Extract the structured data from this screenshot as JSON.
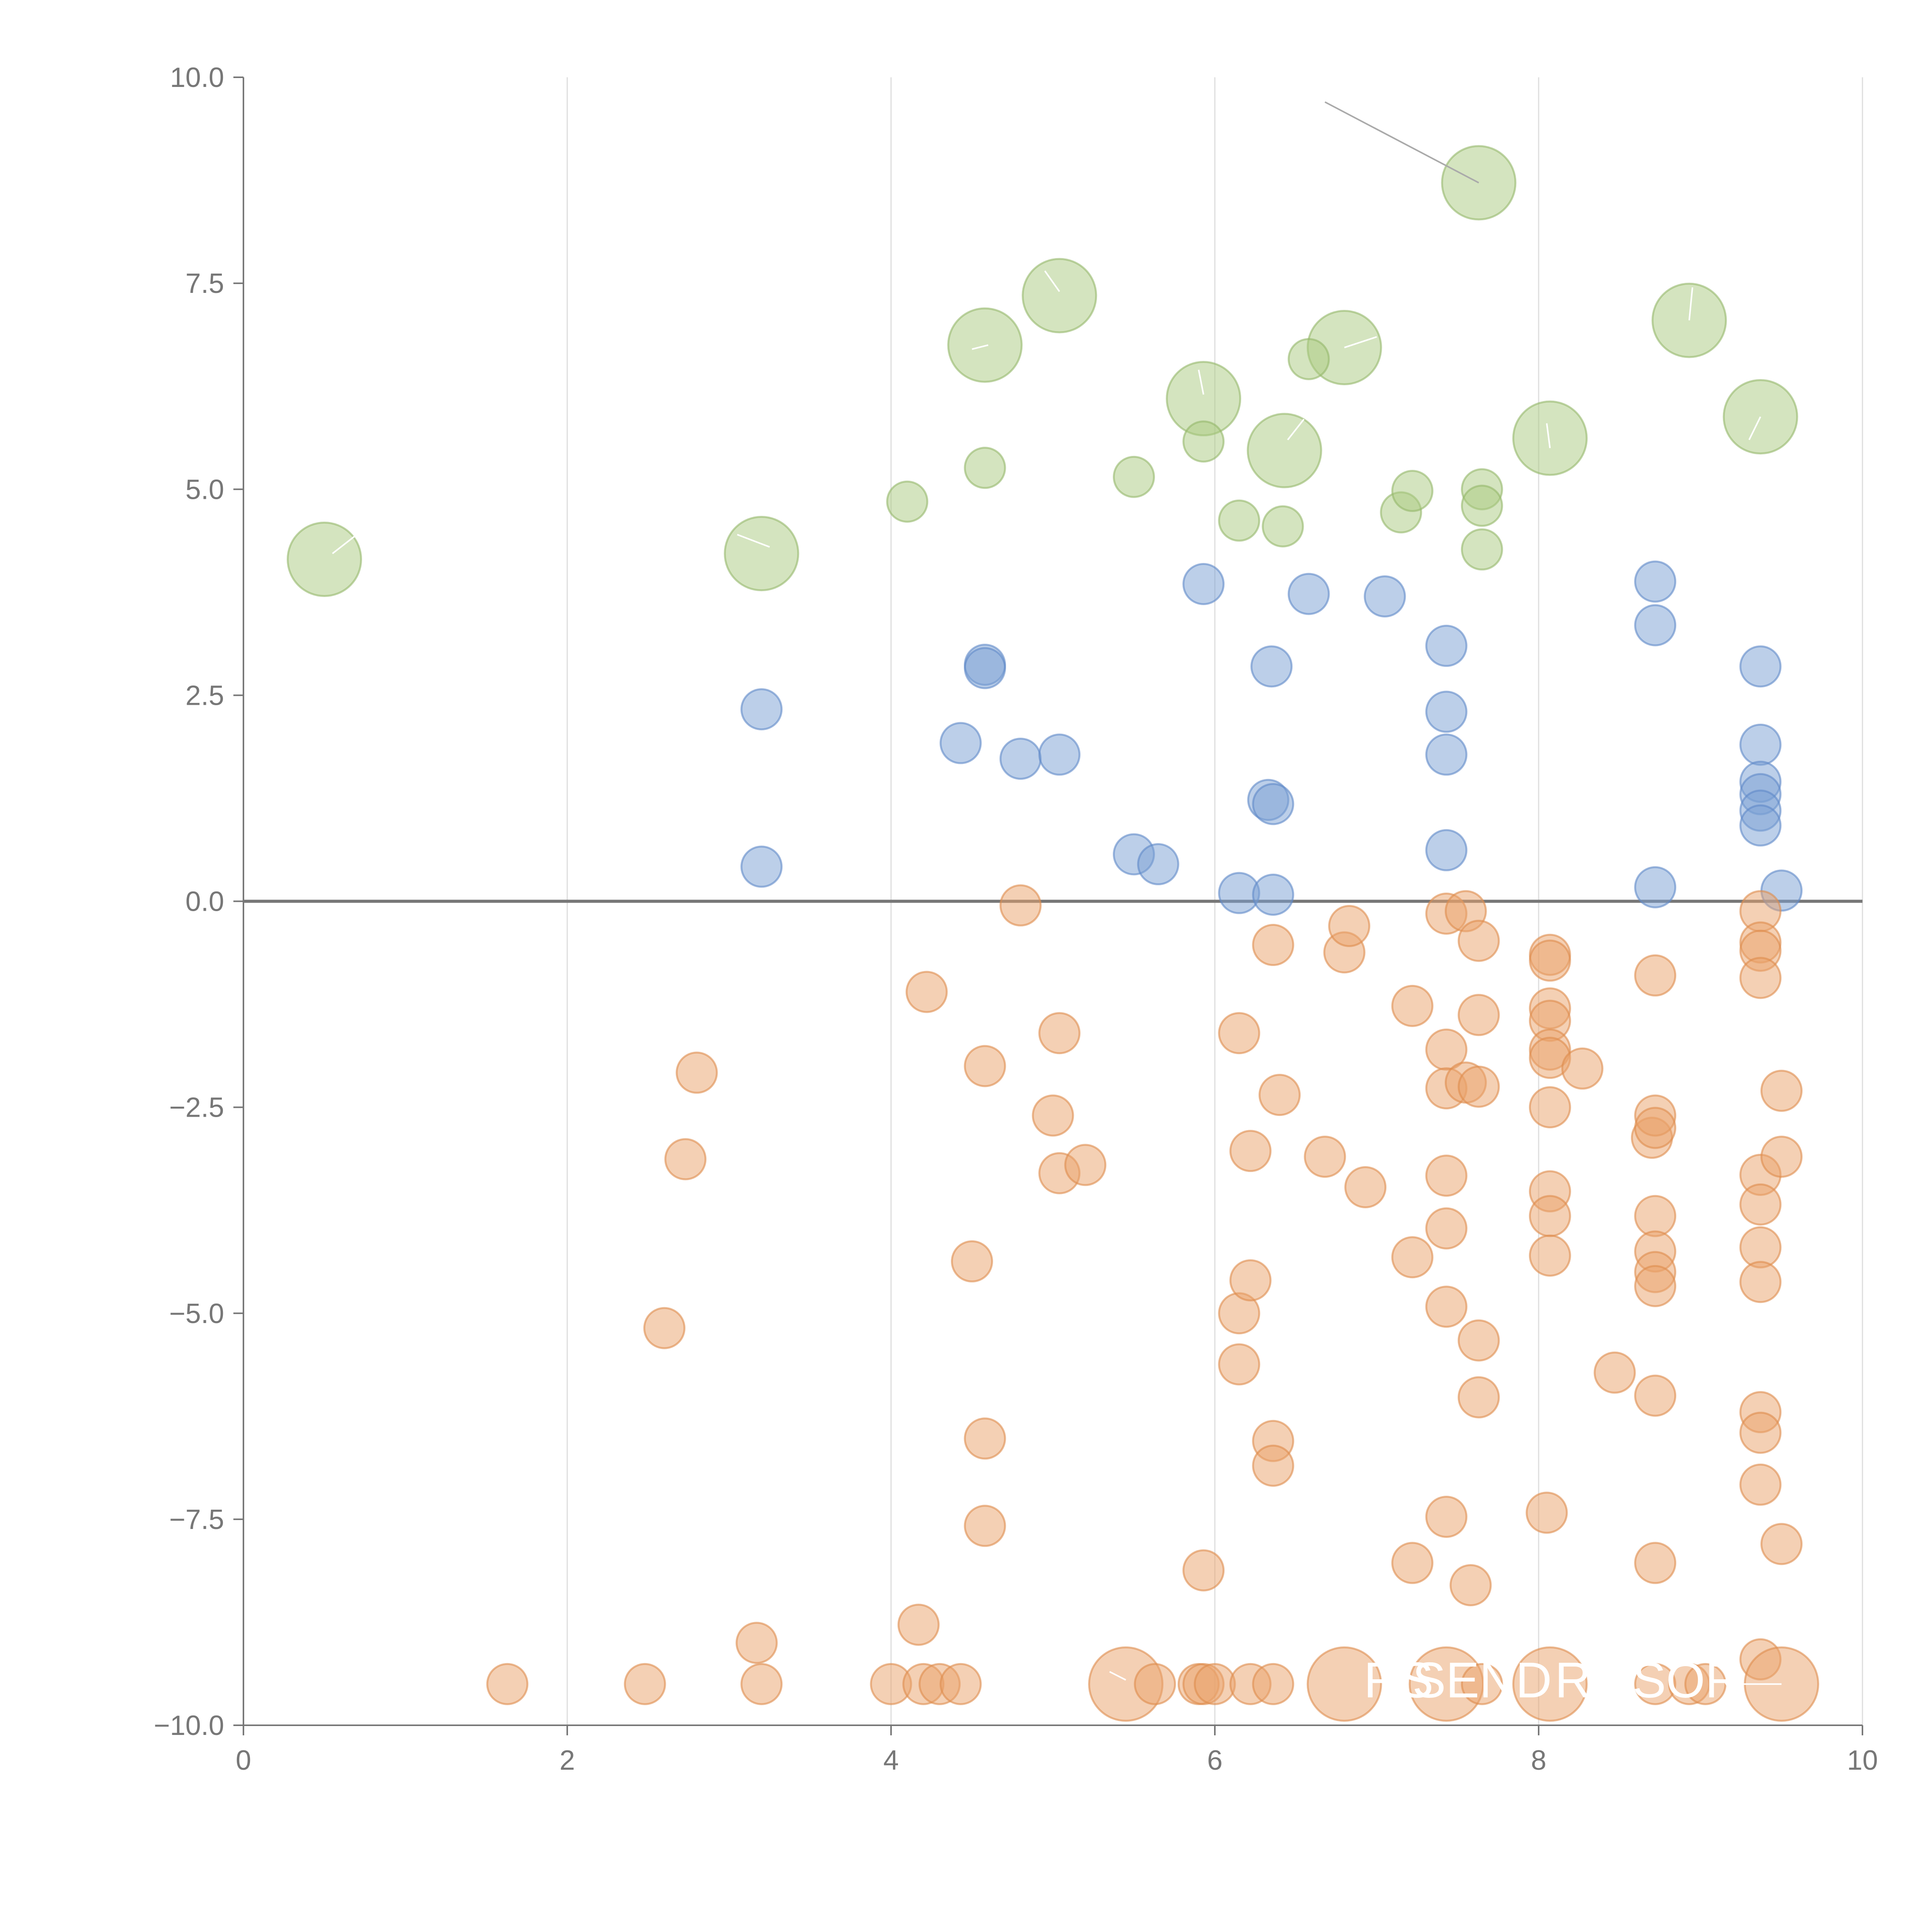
{
  "chart_data": {
    "type": "scatter",
    "title": "",
    "xlabel": "",
    "ylabel": "",
    "xlim": [
      0,
      10
    ],
    "ylim": [
      -10,
      10
    ],
    "x_ticks": [
      0,
      2,
      4,
      6,
      8,
      10
    ],
    "x_tick_labels": [
      "0",
      "2",
      "4",
      "6",
      "8",
      "10"
    ],
    "y_ticks": [
      10,
      7.5,
      5,
      2.5,
      0,
      -2.5,
      -5,
      -7.5,
      -10
    ],
    "y_tick_labels": [
      "10.0",
      "7.5",
      "5.0",
      "2.5",
      "0.0",
      "−2.5",
      "−5.0",
      "−7.5",
      "−10.0"
    ],
    "grid": "vertical",
    "reference_line_y": 0,
    "colors": {
      "green": "#a9c97f",
      "green_stroke": "#94b86a",
      "blue": "#7a9fd4",
      "blue_stroke": "#5f88c8",
      "orange": "#e9a26a",
      "orange_stroke": "#dd8c4d",
      "axis": "#777777",
      "grid": "#dddddd",
      "leader": "#aaaaaa"
    },
    "series": [
      {
        "name": "green",
        "color": "#a9c97f",
        "points": [
          [
            0.5,
            4.15,
            3
          ],
          [
            3.2,
            4.22,
            3
          ],
          [
            4.58,
            6.75,
            3
          ],
          [
            5.04,
            7.35,
            3
          ],
          [
            5.93,
            6.1,
            3
          ],
          [
            6.43,
            5.47,
            3
          ],
          [
            6.8,
            6.72,
            3
          ],
          [
            7.63,
            8.72,
            3
          ],
          [
            8.07,
            5.62,
            3
          ],
          [
            8.93,
            7.05,
            3
          ],
          [
            9.37,
            5.88,
            3
          ],
          [
            4.1,
            4.85,
            1
          ],
          [
            4.58,
            5.26,
            1
          ],
          [
            5.5,
            5.15,
            1
          ],
          [
            5.93,
            5.58,
            1
          ],
          [
            6.15,
            4.62,
            1
          ],
          [
            6.42,
            4.55,
            1
          ],
          [
            6.58,
            6.58,
            1
          ],
          [
            7.15,
            4.72,
            1
          ],
          [
            7.22,
            4.98,
            1
          ],
          [
            7.65,
            5.0,
            1
          ],
          [
            7.65,
            4.8,
            1
          ],
          [
            7.65,
            4.27,
            1
          ]
        ]
      },
      {
        "name": "blue",
        "color": "#7a9fd4",
        "points": [
          [
            3.2,
            2.33,
            1
          ],
          [
            3.2,
            0.42,
            1
          ],
          [
            4.43,
            1.92,
            1
          ],
          [
            4.58,
            2.87,
            1
          ],
          [
            4.58,
            2.83,
            1
          ],
          [
            4.8,
            1.73,
            1
          ],
          [
            5.04,
            1.78,
            1
          ],
          [
            5.5,
            0.57,
            1
          ],
          [
            5.65,
            0.45,
            1
          ],
          [
            5.93,
            3.85,
            1
          ],
          [
            6.15,
            0.1,
            1
          ],
          [
            6.35,
            2.85,
            1
          ],
          [
            6.33,
            1.23,
            1
          ],
          [
            6.36,
            1.18,
            1
          ],
          [
            6.36,
            0.08,
            1
          ],
          [
            6.58,
            3.73,
            1
          ],
          [
            7.05,
            3.7,
            1
          ],
          [
            7.43,
            3.1,
            1
          ],
          [
            7.43,
            2.3,
            1
          ],
          [
            7.43,
            1.78,
            1
          ],
          [
            7.43,
            0.62,
            1
          ],
          [
            8.72,
            3.88,
            1
          ],
          [
            8.72,
            3.35,
            1
          ],
          [
            8.72,
            0.17,
            1
          ],
          [
            9.37,
            2.85,
            1
          ],
          [
            9.37,
            1.9,
            1
          ],
          [
            9.37,
            1.45,
            1
          ],
          [
            9.37,
            1.3,
            1
          ],
          [
            9.37,
            1.1,
            1
          ],
          [
            9.37,
            0.92,
            1
          ],
          [
            9.5,
            0.13,
            1
          ]
        ]
      },
      {
        "name": "orange",
        "color": "#e9a26a",
        "points": [
          [
            1.63,
            -9.5,
            1
          ],
          [
            2.48,
            -9.5,
            1
          ],
          [
            2.6,
            -5.18,
            1
          ],
          [
            2.73,
            -3.13,
            1
          ],
          [
            2.8,
            -2.08,
            1
          ],
          [
            3.17,
            -9.0,
            1
          ],
          [
            3.2,
            -9.5,
            1
          ],
          [
            4.0,
            -9.5,
            1
          ],
          [
            4.17,
            -8.78,
            1
          ],
          [
            4.2,
            -9.5,
            1
          ],
          [
            4.22,
            -1.1,
            1
          ],
          [
            4.3,
            -9.5,
            1
          ],
          [
            4.43,
            -9.5,
            1
          ],
          [
            4.5,
            -4.37,
            1
          ],
          [
            4.58,
            -2.0,
            1
          ],
          [
            4.58,
            -6.52,
            1
          ],
          [
            4.58,
            -7.58,
            1
          ],
          [
            4.8,
            -0.05,
            1
          ],
          [
            5.0,
            -2.6,
            1
          ],
          [
            5.04,
            -1.6,
            1
          ],
          [
            5.04,
            -3.3,
            1
          ],
          [
            5.2,
            -3.2,
            1
          ],
          [
            5.45,
            -9.5,
            3
          ],
          [
            5.63,
            -9.5,
            1
          ],
          [
            5.9,
            -9.5,
            1
          ],
          [
            5.93,
            -8.12,
            1
          ],
          [
            5.93,
            -9.5,
            1
          ],
          [
            6.0,
            -9.5,
            1
          ],
          [
            6.15,
            -1.6,
            1
          ],
          [
            6.15,
            -5.0,
            1
          ],
          [
            6.15,
            -5.62,
            1
          ],
          [
            6.22,
            -3.03,
            1
          ],
          [
            6.22,
            -4.6,
            1
          ],
          [
            6.22,
            -9.5,
            1
          ],
          [
            6.36,
            -0.53,
            1
          ],
          [
            6.36,
            -6.55,
            1
          ],
          [
            6.36,
            -6.85,
            1
          ],
          [
            6.36,
            -9.5,
            1
          ],
          [
            6.4,
            -2.35,
            1
          ],
          [
            6.68,
            -3.1,
            1
          ],
          [
            6.8,
            -9.5,
            3
          ],
          [
            6.8,
            -0.62,
            1
          ],
          [
            6.83,
            -0.3,
            1
          ],
          [
            6.93,
            -3.47,
            1
          ],
          [
            7.22,
            -1.27,
            1
          ],
          [
            7.22,
            -4.32,
            1
          ],
          [
            7.22,
            -8.03,
            1
          ],
          [
            7.43,
            -0.15,
            1
          ],
          [
            7.43,
            -1.8,
            1
          ],
          [
            7.43,
            -2.27,
            1
          ],
          [
            7.43,
            -3.33,
            1
          ],
          [
            7.43,
            -3.97,
            1
          ],
          [
            7.43,
            -4.92,
            1
          ],
          [
            7.43,
            -7.47,
            1
          ],
          [
            7.43,
            -9.5,
            3
          ],
          [
            7.55,
            -2.2,
            1
          ],
          [
            7.55,
            -0.12,
            1
          ],
          [
            7.58,
            -8.3,
            1
          ],
          [
            7.63,
            -0.48,
            1
          ],
          [
            7.63,
            -1.38,
            1
          ],
          [
            7.63,
            -2.25,
            1
          ],
          [
            7.63,
            -5.33,
            1
          ],
          [
            7.63,
            -6.02,
            1
          ],
          [
            7.65,
            -9.5,
            1
          ],
          [
            8.05,
            -7.42,
            1
          ],
          [
            8.07,
            -0.65,
            1
          ],
          [
            8.07,
            -0.72,
            1
          ],
          [
            8.07,
            -1.3,
            1
          ],
          [
            8.07,
            -1.45,
            1
          ],
          [
            8.07,
            -1.8,
            1
          ],
          [
            8.07,
            -1.9,
            1
          ],
          [
            8.07,
            -2.5,
            1
          ],
          [
            8.07,
            -3.52,
            1
          ],
          [
            8.07,
            -3.82,
            1
          ],
          [
            8.07,
            -4.3,
            1
          ],
          [
            8.07,
            -9.5,
            3
          ],
          [
            8.27,
            -2.03,
            1
          ],
          [
            8.47,
            -5.72,
            1
          ],
          [
            8.7,
            -2.87,
            1
          ],
          [
            8.72,
            -0.9,
            1
          ],
          [
            8.72,
            -2.6,
            1
          ],
          [
            8.72,
            -2.75,
            1
          ],
          [
            8.72,
            -3.82,
            1
          ],
          [
            8.72,
            -4.25,
            1
          ],
          [
            8.72,
            -4.5,
            1
          ],
          [
            8.72,
            -4.67,
            1
          ],
          [
            8.72,
            -6.0,
            1
          ],
          [
            8.72,
            -8.03,
            1
          ],
          [
            8.72,
            -9.5,
            1
          ],
          [
            8.93,
            -9.5,
            1
          ],
          [
            9.03,
            -9.5,
            1
          ],
          [
            9.37,
            -0.12,
            1
          ],
          [
            9.37,
            -0.5,
            1
          ],
          [
            9.37,
            -0.6,
            1
          ],
          [
            9.37,
            -0.93,
            1
          ],
          [
            9.37,
            -3.32,
            1
          ],
          [
            9.37,
            -3.68,
            1
          ],
          [
            9.37,
            -4.2,
            1
          ],
          [
            9.37,
            -4.62,
            1
          ],
          [
            9.37,
            -6.2,
            1
          ],
          [
            9.37,
            -6.45,
            1
          ],
          [
            9.37,
            -7.08,
            1
          ],
          [
            9.37,
            -9.2,
            1
          ],
          [
            9.5,
            -2.3,
            1
          ],
          [
            9.5,
            -3.1,
            1
          ],
          [
            9.5,
            -7.8,
            1
          ],
          [
            9.5,
            -9.5,
            3
          ]
        ]
      }
    ],
    "annotations": [
      {
        "text": "RS",
        "x": 6.92,
        "y": -9.45
      },
      {
        "text": "SEND",
        "x": 7.22,
        "y": -9.45
      },
      {
        "text": "RS",
        "x": 8.1,
        "y": -9.45
      },
      {
        "text": "SOR",
        "x": 8.58,
        "y": -9.45
      }
    ],
    "leader_lines": [
      {
        "x1": 6.68,
        "y1": 9.7,
        "x2": 7.63,
        "y2": 8.72,
        "color": "#aaaaaa"
      },
      {
        "x1": 0.55,
        "y1": 4.22,
        "x2": 0.7,
        "y2": 4.45,
        "color": "#ffffff"
      },
      {
        "x1": 3.25,
        "y1": 4.3,
        "x2": 3.05,
        "y2": 4.45,
        "color": "#ffffff"
      },
      {
        "x1": 4.6,
        "y1": 6.75,
        "x2": 4.5,
        "y2": 6.7,
        "color": "#ffffff"
      },
      {
        "x1": 5.04,
        "y1": 7.4,
        "x2": 4.95,
        "y2": 7.65,
        "color": "#ffffff"
      },
      {
        "x1": 5.93,
        "y1": 6.15,
        "x2": 5.9,
        "y2": 6.45,
        "color": "#ffffff"
      },
      {
        "x1": 6.45,
        "y1": 5.6,
        "x2": 6.55,
        "y2": 5.85,
        "color": "#ffffff"
      },
      {
        "x1": 6.8,
        "y1": 6.72,
        "x2": 7.0,
        "y2": 6.85,
        "color": "#ffffff"
      },
      {
        "x1": 8.07,
        "y1": 5.5,
        "x2": 8.05,
        "y2": 5.8,
        "color": "#ffffff"
      },
      {
        "x1": 8.93,
        "y1": 7.05,
        "x2": 8.95,
        "y2": 7.45,
        "color": "#ffffff"
      },
      {
        "x1": 9.37,
        "y1": 5.88,
        "x2": 9.3,
        "y2": 5.6,
        "color": "#ffffff"
      },
      {
        "x1": 5.45,
        "y1": -9.45,
        "x2": 5.35,
        "y2": -9.35,
        "color": "#ffffff"
      },
      {
        "x1": 9.2,
        "y1": -9.5,
        "x2": 9.5,
        "y2": -9.5,
        "color": "#ffffff"
      }
    ]
  }
}
